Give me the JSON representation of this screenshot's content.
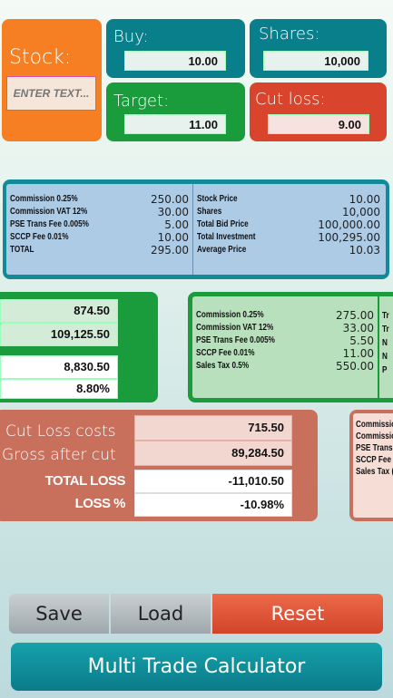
{
  "stock": {
    "title": "Stock:",
    "placeholder": "ENTER TEXT..."
  },
  "buy": {
    "title": "Buy:",
    "value": "10.00"
  },
  "shares": {
    "title": "Shares:",
    "value": "10,000"
  },
  "target": {
    "title": "Target:",
    "value": "11.00"
  },
  "cutloss": {
    "title": "Cut loss:",
    "value": "9.00"
  },
  "buy_summary": {
    "left": [
      {
        "label": "Commission 0.25%",
        "value": "250.00"
      },
      {
        "label": "Commission VAT 12%",
        "value": "30.00"
      },
      {
        "label": "PSE Trans Fee 0.005%",
        "value": "5.00"
      },
      {
        "label": "SCCP Fee 0.01%",
        "value": "10.00"
      },
      {
        "label": "TOTAL",
        "value": "295.00"
      }
    ],
    "right": [
      {
        "label": "Stock Price",
        "value": "10.00"
      },
      {
        "label": "Shares",
        "value": "10,000"
      },
      {
        "label": "Total Bid Price",
        "value": "100,000.00"
      },
      {
        "label": "Total Investment",
        "value": "100,295.00"
      },
      {
        "label": "Average Price",
        "value": "10.03"
      }
    ]
  },
  "target_result": {
    "values": [
      "874.50",
      "109,125.50",
      "8,830.50",
      "8.80%"
    ]
  },
  "sell_summary": {
    "rows": [
      {
        "label": "Commission 0.25%",
        "value": "275.00"
      },
      {
        "label": "Commission VAT 12%",
        "value": "33.00"
      },
      {
        "label": "PSE Trans Fee 0.005%",
        "value": "5.50"
      },
      {
        "label": "SCCP Fee 0.01%",
        "value": "11.00"
      },
      {
        "label": "Sales Tax 0.5%",
        "value": "550.00"
      }
    ],
    "overflow": [
      "Tr",
      "Tr",
      "N",
      "N",
      "P"
    ]
  },
  "cutloss_result": {
    "cost_label": "Cut Loss costs",
    "cost_value": "715.50",
    "gross_label": "Gross after cut",
    "gross_value": "89,284.50",
    "total_label": "TOTAL LOSS",
    "total_value": "-11,010.50",
    "pct_label": "LOSS %",
    "pct_value": "-10.98%"
  },
  "cutloss_fees_partial": [
    "Commissio",
    "Commissio",
    "PSE Trans",
    "SCCP Fee",
    "Sales Tax ("
  ],
  "buttons": {
    "save": "Save",
    "load": "Load",
    "reset": "Reset",
    "multi": "Multi Trade Calculator"
  },
  "colors": {
    "orange": "#f57f22",
    "teal": "#0a7f8c",
    "green": "#1a9b3c",
    "red": "#d9452c",
    "salmon": "#c9705c"
  }
}
